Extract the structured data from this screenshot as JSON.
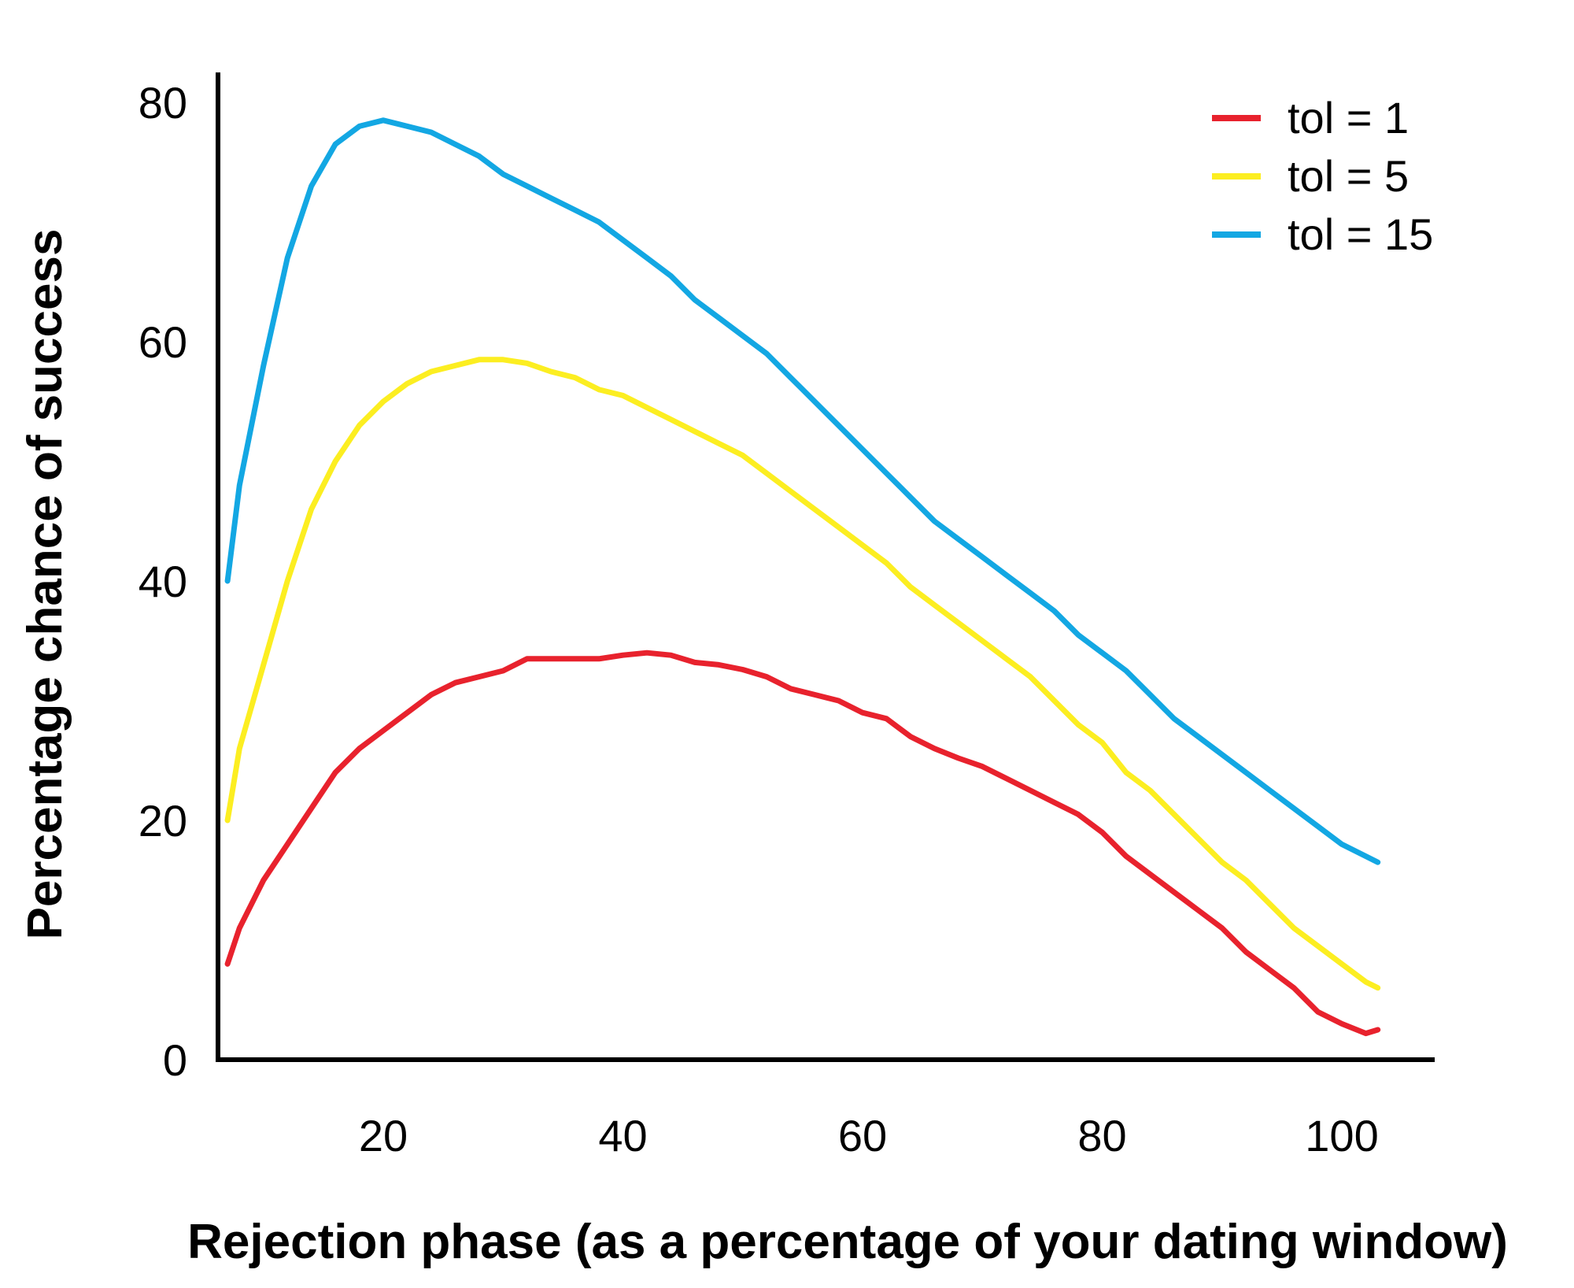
{
  "chart_data": {
    "type": "line",
    "title": "",
    "xlabel": "Rejection phase (as a percentage of your dating window)",
    "ylabel": "Percentage chance of success",
    "xlim": [
      7,
      105
    ],
    "ylim": [
      0,
      80
    ],
    "x_ticks": [
      20,
      40,
      60,
      80,
      100
    ],
    "y_ticks": [
      0,
      20,
      40,
      60,
      80
    ],
    "grid": false,
    "legend_position": "top-right",
    "series": [
      {
        "name": "tol = 1",
        "color": "#e8222d",
        "x": [
          7,
          8,
          10,
          12,
          14,
          16,
          18,
          20,
          22,
          24,
          26,
          28,
          30,
          32,
          34,
          36,
          38,
          40,
          42,
          44,
          46,
          48,
          50,
          52,
          54,
          56,
          58,
          60,
          62,
          64,
          66,
          68,
          70,
          72,
          74,
          76,
          78,
          80,
          82,
          84,
          86,
          88,
          90,
          92,
          94,
          96,
          98,
          100,
          102,
          103
        ],
        "y": [
          8,
          11,
          15,
          18,
          21,
          24,
          26,
          27.5,
          29,
          30.5,
          31.5,
          32,
          32.5,
          33.5,
          33.5,
          33.5,
          33.5,
          33.8,
          34,
          33.8,
          33.2,
          33,
          32.6,
          32,
          31,
          30.5,
          30,
          29,
          28.5,
          27,
          26,
          25.2,
          24.5,
          23.5,
          22.5,
          21.5,
          20.5,
          19,
          17,
          15.5,
          14,
          12.5,
          11,
          9,
          7.5,
          6,
          4,
          3,
          2.2,
          2.5
        ]
      },
      {
        "name": "tol = 5",
        "color": "#fcee21",
        "x": [
          7,
          8,
          10,
          12,
          14,
          16,
          18,
          20,
          22,
          24,
          26,
          28,
          30,
          32,
          34,
          36,
          38,
          40,
          42,
          44,
          46,
          48,
          50,
          52,
          54,
          56,
          58,
          60,
          62,
          64,
          66,
          68,
          70,
          72,
          74,
          76,
          78,
          80,
          82,
          84,
          86,
          88,
          90,
          92,
          94,
          96,
          98,
          100,
          102,
          103
        ],
        "y": [
          20,
          26,
          33,
          40,
          46,
          50,
          53,
          55,
          56.5,
          57.5,
          58,
          58.5,
          58.5,
          58.2,
          57.5,
          57,
          56,
          55.5,
          54.5,
          53.5,
          52.5,
          51.5,
          50.5,
          49,
          47.5,
          46,
          44.5,
          43,
          41.5,
          39.5,
          38,
          36.5,
          35,
          33.5,
          32,
          30,
          28,
          26.5,
          24,
          22.5,
          20.5,
          18.5,
          16.5,
          15,
          13,
          11,
          9.5,
          8,
          6.5,
          6
        ]
      },
      {
        "name": "tol = 15",
        "color": "#13a7e3",
        "x": [
          7,
          8,
          10,
          12,
          14,
          16,
          18,
          20,
          22,
          24,
          26,
          28,
          30,
          32,
          34,
          36,
          38,
          40,
          42,
          44,
          46,
          48,
          50,
          52,
          54,
          56,
          58,
          60,
          62,
          64,
          66,
          68,
          70,
          72,
          74,
          76,
          78,
          80,
          82,
          84,
          86,
          88,
          90,
          92,
          94,
          96,
          98,
          100,
          102,
          103
        ],
        "y": [
          40,
          48,
          58,
          67,
          73,
          76.5,
          78,
          78.5,
          78,
          77.5,
          76.5,
          75.5,
          74,
          73,
          72,
          71,
          70,
          68.5,
          67,
          65.5,
          63.5,
          62,
          60.5,
          59,
          57,
          55,
          53,
          51,
          49,
          47,
          45,
          43.5,
          42,
          40.5,
          39,
          37.5,
          35.5,
          34,
          32.5,
          30.5,
          28.5,
          27,
          25.5,
          24,
          22.5,
          21,
          19.5,
          18,
          17,
          16.5
        ]
      }
    ]
  }
}
